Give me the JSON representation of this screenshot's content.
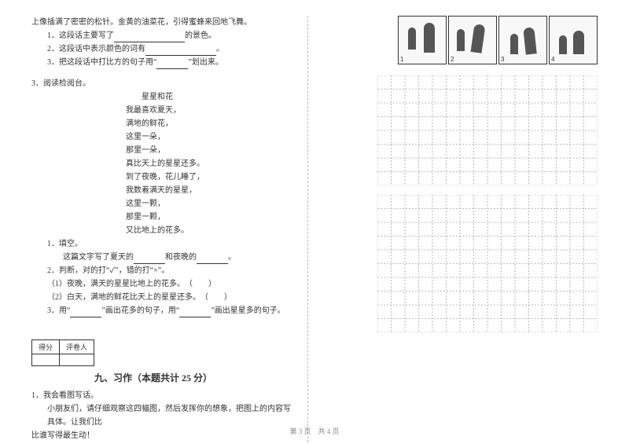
{
  "leftColumn": {
    "intro": "上像插满了密密的松针。金黄的油菜花，引得蜜蜂来回地飞舞。",
    "q1": "1．这段话主要写了",
    "q1_tail": "的景色。",
    "q2": "2．这段话中表示颜色的词有",
    "q2_tail": "。",
    "q3_a": "3．把这段话中打比方的句子用“",
    "q3_b": "”划出来。",
    "section3": "3．阅读检阅台。",
    "poem_title": "星星和花",
    "poem_lines": [
      "我最喜欢夏天，",
      "满地的鲜花，",
      "这里一朵，",
      "那里一朵，",
      "真比天上的星星还多。",
      "到了夜晚，花儿睡了，",
      "我数着满天的星星，",
      "这里一颗，",
      "那里一颗，",
      "又比地上的花多。"
    ],
    "sub1": "1．填空。",
    "sub1_line_a": "这篇文字写了夏天的",
    "sub1_line_b": "和夜晚的",
    "sub1_line_c": "。",
    "sub2": "2．判断，对的打“✓”，错的打“×”。",
    "sub2_a": "（1）夜晚，满天的星星比地上的花多。　（　　）",
    "sub2_b": "（2）白天，满地的鲜花比天上的星星还多。　（　　）",
    "sub3_a": "3．用“",
    "sub3_b": "”画出花多的句子，用“",
    "sub3_c": "”画出星星多的句子。",
    "score_top_left": "得分",
    "score_top_right": "评卷人",
    "section9": "九、习作（本题共计 25 分）",
    "task1": "1．我会看图写话。",
    "task1_body1": "小朋友们，请仔细观察这四幅图，然后发挥你的想象，把图上的内容写具体。让我们比",
    "task1_body2": "比谁写得最生动！"
  },
  "comic": {
    "labels": [
      "1",
      "2",
      "3",
      "4"
    ]
  },
  "grid": {
    "cols": 16,
    "rows_a": 8,
    "rows_b": 10,
    "cell": 17.5,
    "stroke": "#a8a8a8",
    "dash": "2,2"
  },
  "footer": "第 3 页 共 4 页"
}
